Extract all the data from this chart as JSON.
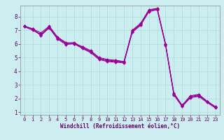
{
  "xlabel": "Windchill (Refroidissement éolien,°C)",
  "ylabel": "",
  "background_color": "#cceef0",
  "grid_color": "#aadddd",
  "line_color": "#990099",
  "xlim": [
    -0.5,
    23.5
  ],
  "ylim": [
    0.8,
    8.8
  ],
  "xticks": [
    0,
    1,
    2,
    3,
    4,
    5,
    6,
    7,
    8,
    9,
    10,
    11,
    12,
    13,
    14,
    15,
    16,
    17,
    18,
    19,
    20,
    21,
    22,
    23
  ],
  "yticks": [
    1,
    2,
    3,
    4,
    5,
    6,
    7,
    8
  ],
  "series": [
    [
      7.3,
      7.1,
      6.8,
      7.3,
      6.5,
      6.1,
      6.0,
      5.8,
      5.5,
      5.0,
      4.85,
      4.8,
      4.7,
      7.0,
      7.5,
      8.5,
      8.6,
      6.0,
      2.4,
      1.5,
      2.2,
      2.3,
      1.8,
      1.4
    ],
    [
      7.3,
      7.1,
      6.6,
      7.2,
      6.4,
      6.0,
      6.05,
      5.7,
      5.4,
      4.9,
      4.75,
      4.7,
      4.65,
      6.9,
      7.4,
      8.4,
      8.55,
      5.95,
      2.3,
      1.45,
      2.1,
      2.2,
      1.75,
      1.35
    ],
    [
      7.3,
      7.05,
      6.7,
      7.25,
      6.45,
      6.05,
      6.1,
      5.75,
      5.45,
      4.95,
      4.8,
      4.75,
      4.68,
      6.95,
      7.45,
      8.45,
      8.58,
      5.98,
      2.35,
      1.48,
      2.15,
      2.25,
      1.78,
      1.38
    ],
    [
      7.25,
      7.0,
      6.65,
      7.15,
      6.35,
      5.95,
      6.0,
      5.65,
      5.35,
      4.85,
      4.7,
      4.65,
      4.6,
      6.85,
      7.35,
      8.35,
      8.5,
      5.9,
      2.25,
      1.4,
      2.05,
      2.15,
      1.7,
      1.3
    ]
  ],
  "tick_fontsize": 5.0,
  "xlabel_fontsize": 5.5,
  "tick_color": "#660066",
  "spine_color": "#888888"
}
